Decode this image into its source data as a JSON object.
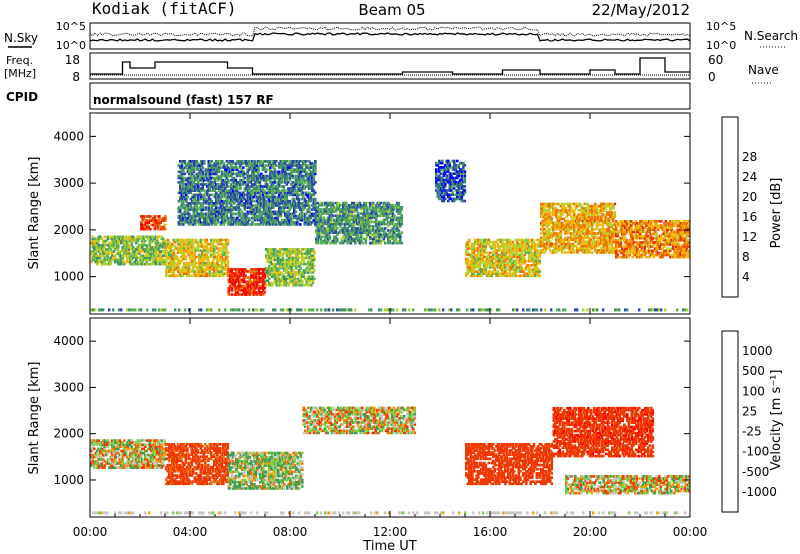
{
  "header": {
    "station": "Kodiak (fitACF)",
    "beam": "Beam 05",
    "date": "22/May/2012"
  },
  "status_panels": {
    "nsky_label": "N.Sky",
    "nsearch_label": "N.Search",
    "nsky_ticks": [
      "10^5",
      "10^0"
    ],
    "nsearch_ticks": [
      "10^5",
      "10^0"
    ],
    "freq_label": [
      "Freq.",
      "[MHz]"
    ],
    "freq_ticks": [
      "18",
      "8"
    ],
    "nave_label": "Nave",
    "nave_ticks": [
      "60",
      "0"
    ],
    "cpid_label": "CPID",
    "cpid_text": "normalsound (fast) 157 RF"
  },
  "colors": {
    "power_scale": [
      "#0000ff",
      "#2848a8",
      "#3c8c6e",
      "#56b050",
      "#b4d22a",
      "#f5b400",
      "#f07000",
      "#e83000",
      "#ff0000"
    ],
    "velocity_scale": [
      "#ff0000",
      "#f03800",
      "#f06c00",
      "#f5a000",
      "#c8c8c0",
      "#7cd040",
      "#3c9c50",
      "#2c6aa8",
      "#1020c0"
    ]
  },
  "chart_data": [
    {
      "type": "heatmap",
      "name": "power",
      "ylabel": "Slant Range [km]",
      "xlim": [
        "00:00",
        "24:00"
      ],
      "ylim": [
        200,
        4500
      ],
      "yticks": [
        1000,
        2000,
        3000,
        4000
      ],
      "colorbar": {
        "label": "Power [dB]",
        "ticks": [
          4,
          8,
          12,
          16,
          20,
          24,
          28
        ],
        "range": [
          0,
          32
        ]
      },
      "bands": [
        {
          "t0": 0.0,
          "t1": 3.0,
          "r0": 1250,
          "r1": 1900,
          "value": 14
        },
        {
          "t0": 2.0,
          "t1": 3.0,
          "r0": 2000,
          "r1": 2300,
          "value": 26
        },
        {
          "t0": 3.0,
          "t1": 5.5,
          "r0": 1000,
          "r1": 1800,
          "value": 18
        },
        {
          "t0": 5.5,
          "t1": 7.0,
          "r0": 600,
          "r1": 1200,
          "value": 28
        },
        {
          "t0": 7.0,
          "t1": 9.0,
          "r0": 800,
          "r1": 1600,
          "value": 14
        },
        {
          "t0": 9.0,
          "t1": 12.5,
          "r0": 1700,
          "r1": 2600,
          "value": 10
        },
        {
          "t0": 3.5,
          "t1": 9.0,
          "r0": 2100,
          "r1": 3500,
          "value": 8
        },
        {
          "t0": 15.0,
          "t1": 18.0,
          "r0": 1000,
          "r1": 1800,
          "value": 18
        },
        {
          "t0": 18.0,
          "t1": 21.0,
          "r0": 1500,
          "r1": 2600,
          "value": 20
        },
        {
          "t0": 21.0,
          "t1": 24.0,
          "r0": 1400,
          "r1": 2200,
          "value": 22
        },
        {
          "t0": 13.8,
          "t1": 15.0,
          "r0": 2600,
          "r1": 3500,
          "value": 6
        }
      ]
    },
    {
      "type": "heatmap",
      "name": "velocity",
      "xlabel": "Time UT",
      "ylabel": "Slant Range [km]",
      "xticks": [
        "00:00",
        "04:00",
        "08:00",
        "12:00",
        "16:00",
        "20:00",
        "00:00"
      ],
      "xlim": [
        "00:00",
        "24:00"
      ],
      "ylim": [
        200,
        4500
      ],
      "yticks": [
        1000,
        2000,
        3000,
        4000
      ],
      "colorbar": {
        "label": "Velocity [m s⁻¹]",
        "ticks": [
          "1000",
          "500",
          "100",
          "25",
          "-25",
          "-100",
          "-500",
          "-1000"
        ]
      },
      "bands": [
        {
          "t0": 0.0,
          "t1": 3.0,
          "r0": 1250,
          "r1": 1900,
          "value": 0
        },
        {
          "t0": 3.0,
          "t1": 5.5,
          "r0": 900,
          "r1": 1800,
          "value": -200
        },
        {
          "t0": 5.5,
          "t1": 8.5,
          "r0": 800,
          "r1": 1600,
          "value": 60
        },
        {
          "t0": 8.5,
          "t1": 13.0,
          "r0": 2000,
          "r1": 2600,
          "value": 0
        },
        {
          "t0": 15.0,
          "t1": 18.5,
          "r0": 900,
          "r1": 1800,
          "value": -250
        },
        {
          "t0": 18.5,
          "t1": 22.5,
          "r0": 1500,
          "r1": 2600,
          "value": -400
        },
        {
          "t0": 19.0,
          "t1": 24.0,
          "r0": 700,
          "r1": 1100,
          "value": 0
        }
      ]
    }
  ]
}
